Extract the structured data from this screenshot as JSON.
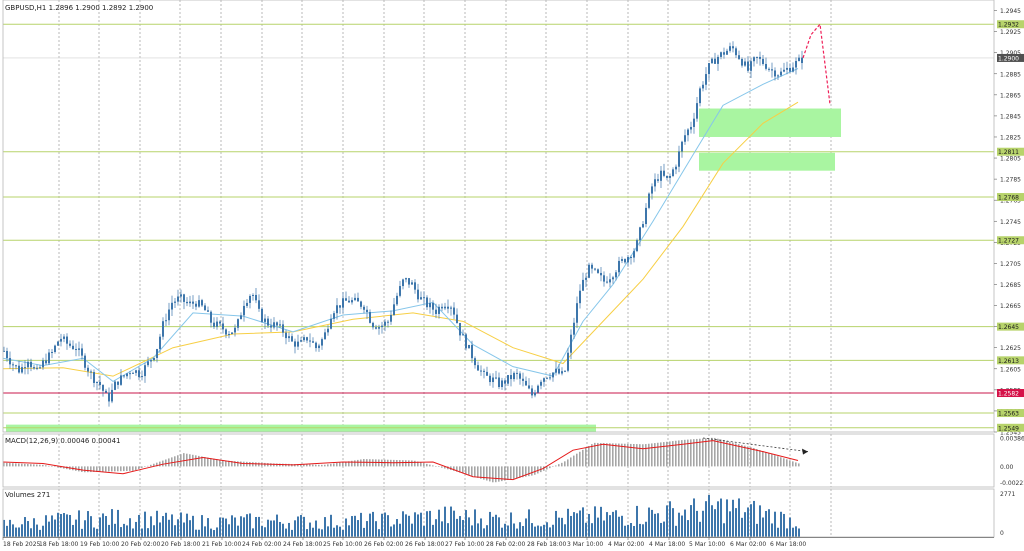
{
  "colors": {
    "background": "#ffffff",
    "grid": "#8a8a8a",
    "frame": "#b8b8b8",
    "candle": "#3d76ab",
    "ma_fast": "#86c6ea",
    "ma_slow": "#f7cf45",
    "level_line": "#b7d36b",
    "level_label_bg": "#b7d36b",
    "zone_fill": "#a9f5a1",
    "red_line": "#c9174b",
    "red_label_bg": "#d51248",
    "forecast": "#ef1f58",
    "macd_line": "#e61a1a",
    "macd_hist": "#a6a6a6",
    "volume": "#3d76ab",
    "current_price_bg": "#505050"
  },
  "main_panel": {
    "header": "GBPUSD,H1  1.2896 1.2900 1.2892 1.2900",
    "price_ticks": [
      "1.2945",
      "1.2925",
      "1.2905",
      "1.2885",
      "1.2865",
      "1.2845",
      "1.2825",
      "1.2805",
      "1.2785",
      "1.2765",
      "1.2745",
      "1.2725",
      "1.2705",
      "1.2685",
      "1.2665",
      "1.2645",
      "1.2625",
      "1.2605",
      "1.2585",
      "1.2565",
      "1.2545"
    ],
    "level_labels": [
      "1.2932",
      "1.2811",
      "1.2768",
      "1.2727",
      "1.2645",
      "1.2613",
      "1.2563",
      "1.2549"
    ],
    "red_level_label": "1.2582",
    "current_price_label": "1.2900"
  },
  "macd_panel": {
    "header": "MACD(12,26,9) 0.00046 0.00041",
    "ticks": [
      "0.00386",
      "0.00",
      "-0.00221"
    ]
  },
  "volume_panel": {
    "header": "Volumes 271",
    "ticks": [
      "2771",
      "0"
    ]
  },
  "time_axis": {
    "labels": [
      "18 Feb 2025",
      "18 Feb 18:00",
      "19 Feb 10:00",
      "20 Feb 02:00",
      "20 Feb 18:00",
      "21 Feb 10:00",
      "24 Feb 02:00",
      "24 Feb 18:00",
      "25 Feb 10:00",
      "26 Feb 02:00",
      "26 Feb 18:00",
      "27 Feb 10:00",
      "28 Feb 02:00",
      "28 Feb 18:00",
      "3 Mar 10:00",
      "4 Mar 02:00",
      "4 Mar 18:00",
      "5 Mar 10:00",
      "6 Mar 02:00",
      "6 Mar 18:00"
    ]
  },
  "chart_data": {
    "type": "candlestick",
    "symbol": "GBPUSD",
    "timeframe": "H1",
    "ylim": [
      1.2545,
      1.2955
    ],
    "close_path": [
      [
        0,
        1.2622
      ],
      [
        8,
        1.261
      ],
      [
        16,
        1.2603
      ],
      [
        24,
        1.2615
      ],
      [
        32,
        1.26
      ],
      [
        40,
        1.2612
      ],
      [
        48,
        1.262
      ],
      [
        56,
        1.2635
      ],
      [
        64,
        1.2628
      ],
      [
        72,
        1.2625
      ],
      [
        80,
        1.2612
      ],
      [
        88,
        1.2598
      ],
      [
        96,
        1.259
      ],
      [
        104,
        1.2575
      ],
      [
        112,
        1.2592
      ],
      [
        120,
        1.2598
      ],
      [
        128,
        1.2605
      ],
      [
        136,
        1.26
      ],
      [
        144,
        1.261
      ],
      [
        152,
        1.2622
      ],
      [
        160,
        1.265
      ],
      [
        168,
        1.2668
      ],
      [
        176,
        1.2672
      ],
      [
        184,
        1.2666
      ],
      [
        192,
        1.2668
      ],
      [
        200,
        1.2662
      ],
      [
        208,
        1.2648
      ],
      [
        216,
        1.2645
      ],
      [
        224,
        1.264
      ],
      [
        232,
        1.2642
      ],
      [
        240,
        1.2668
      ],
      [
        248,
        1.2678
      ],
      [
        256,
        1.2655
      ],
      [
        264,
        1.2648
      ],
      [
        272,
        1.2646
      ],
      [
        280,
        1.264
      ],
      [
        288,
        1.263
      ],
      [
        296,
        1.2628
      ],
      [
        304,
        1.2635
      ],
      [
        312,
        1.2625
      ],
      [
        320,
        1.2635
      ],
      [
        328,
        1.266
      ],
      [
        336,
        1.2666
      ],
      [
        344,
        1.267
      ],
      [
        352,
        1.2668
      ],
      [
        360,
        1.2665
      ],
      [
        368,
        1.2648
      ],
      [
        376,
        1.2645
      ],
      [
        384,
        1.265
      ],
      [
        392,
        1.2672
      ],
      [
        400,
        1.269
      ],
      [
        408,
        1.2685
      ],
      [
        416,
        1.2672
      ],
      [
        424,
        1.2665
      ],
      [
        432,
        1.266
      ],
      [
        440,
        1.2668
      ],
      [
        448,
        1.2665
      ],
      [
        456,
        1.264
      ],
      [
        464,
        1.2625
      ],
      [
        472,
        1.261
      ],
      [
        480,
        1.2598
      ],
      [
        488,
        1.2595
      ],
      [
        496,
        1.259
      ],
      [
        504,
        1.2595
      ],
      [
        512,
        1.26
      ],
      [
        520,
        1.259
      ],
      [
        528,
        1.258
      ],
      [
        536,
        1.2595
      ],
      [
        544,
        1.26
      ],
      [
        552,
        1.2602
      ],
      [
        560,
        1.2598
      ],
      [
        568,
        1.264
      ],
      [
        576,
        1.268
      ],
      [
        584,
        1.27
      ],
      [
        592,
        1.2695
      ],
      [
        600,
        1.2688
      ],
      [
        608,
        1.2695
      ],
      [
        616,
        1.2705
      ],
      [
        624,
        1.2712
      ],
      [
        632,
        1.272
      ],
      [
        640,
        1.275
      ],
      [
        648,
        1.2778
      ],
      [
        656,
        1.279
      ],
      [
        664,
        1.2783
      ],
      [
        672,
        1.28
      ],
      [
        680,
        1.2825
      ],
      [
        688,
        1.2838
      ],
      [
        696,
        1.287
      ],
      [
        704,
        1.289
      ],
      [
        712,
        1.29
      ],
      [
        720,
        1.2905
      ],
      [
        728,
        1.291
      ],
      [
        736,
        1.29
      ],
      [
        744,
        1.2888
      ],
      [
        752,
        1.29
      ],
      [
        760,
        1.2895
      ],
      [
        768,
        1.2888
      ],
      [
        776,
        1.2885
      ],
      [
        784,
        1.289
      ],
      [
        792,
        1.2895
      ],
      [
        800,
        1.29
      ]
    ],
    "ma_fast_path": [
      [
        0,
        1.2615
      ],
      [
        40,
        1.2608
      ],
      [
        80,
        1.2615
      ],
      [
        110,
        1.2593
      ],
      [
        150,
        1.2615
      ],
      [
        190,
        1.2658
      ],
      [
        240,
        1.2655
      ],
      [
        290,
        1.264
      ],
      [
        340,
        1.2656
      ],
      [
        390,
        1.266
      ],
      [
        430,
        1.2668
      ],
      [
        470,
        1.2628
      ],
      [
        510,
        1.2607
      ],
      [
        550,
        1.2598
      ],
      [
        580,
        1.265
      ],
      [
        610,
        1.2685
      ],
      [
        650,
        1.2745
      ],
      [
        690,
        1.2808
      ],
      [
        720,
        1.2855
      ],
      [
        760,
        1.2875
      ],
      [
        795,
        1.289
      ]
    ],
    "ma_slow_path": [
      [
        0,
        1.2605
      ],
      [
        60,
        1.2606
      ],
      [
        110,
        1.2598
      ],
      [
        170,
        1.2625
      ],
      [
        230,
        1.2638
      ],
      [
        290,
        1.264
      ],
      [
        350,
        1.2652
      ],
      [
        410,
        1.2658
      ],
      [
        460,
        1.265
      ],
      [
        510,
        1.2625
      ],
      [
        560,
        1.261
      ],
      [
        600,
        1.265
      ],
      [
        640,
        1.269
      ],
      [
        680,
        1.274
      ],
      [
        720,
        1.28
      ],
      [
        760,
        1.2838
      ],
      [
        795,
        1.2858
      ]
    ],
    "horizontal_levels": [
      1.2932,
      1.2811,
      1.2768,
      1.2727,
      1.2645,
      1.2613,
      1.2563,
      1.2549
    ],
    "red_level": 1.2582,
    "zones": [
      {
        "x0": 696,
        "x1": 838,
        "top": 1.2852,
        "bottom": 1.2825
      },
      {
        "x0": 696,
        "x1": 832,
        "top": 1.281,
        "bottom": 1.2793
      },
      {
        "x0": 3,
        "x1": 593,
        "top": 1.2552,
        "bottom": 1.2545
      }
    ],
    "forecast_path": [
      [
        800,
        1.29
      ],
      [
        808,
        1.2922
      ],
      [
        817,
        1.2932
      ],
      [
        827,
        1.2856
      ]
    ],
    "current_price": 1.29,
    "macd": {
      "ylim": [
        -0.0028,
        0.0044
      ],
      "signal_path": [
        [
          0,
          0.0006
        ],
        [
          40,
          0.0004
        ],
        [
          80,
          -0.0005
        ],
        [
          120,
          -0.001
        ],
        [
          160,
          0.0003
        ],
        [
          200,
          0.0012
        ],
        [
          240,
          0.0004
        ],
        [
          290,
          0.0002
        ],
        [
          340,
          0.0006
        ],
        [
          390,
          0.0005
        ],
        [
          430,
          0.0006
        ],
        [
          470,
          -0.0014
        ],
        [
          510,
          -0.0018
        ],
        [
          540,
          -0.0003
        ],
        [
          570,
          0.0022
        ],
        [
          600,
          0.003
        ],
        [
          640,
          0.0024
        ],
        [
          680,
          0.003
        ],
        [
          710,
          0.0035
        ],
        [
          760,
          0.002
        ],
        [
          795,
          0.0008
        ]
      ],
      "hist_path": [
        [
          0,
          0.0005
        ],
        [
          40,
          0.0002
        ],
        [
          80,
          -0.0008
        ],
        [
          130,
          -0.0006
        ],
        [
          180,
          0.0018
        ],
        [
          220,
          0.0008
        ],
        [
          270,
          0.0004
        ],
        [
          320,
          0.0002
        ],
        [
          360,
          0.001
        ],
        [
          410,
          0.0008
        ],
        [
          450,
          -0.0006
        ],
        [
          490,
          -0.0022
        ],
        [
          530,
          -0.0012
        ],
        [
          560,
          0.0006
        ],
        [
          590,
          0.0032
        ],
        [
          640,
          0.003
        ],
        [
          680,
          0.0036
        ],
        [
          710,
          0.0039
        ],
        [
          750,
          0.0025
        ],
        [
          795,
          0.0004
        ]
      ],
      "trend_arrow": [
        [
          700,
          0.00386
        ],
        [
          805,
          0.002
        ]
      ]
    },
    "volume": {
      "max": 2771,
      "profile": [
        [
          0,
          0.3
        ],
        [
          60,
          0.4
        ],
        [
          120,
          0.45
        ],
        [
          200,
          0.35
        ],
        [
          260,
          0.38
        ],
        [
          320,
          0.35
        ],
        [
          380,
          0.4
        ],
        [
          440,
          0.5
        ],
        [
          500,
          0.42
        ],
        [
          560,
          0.45
        ],
        [
          620,
          0.5
        ],
        [
          680,
          0.6
        ],
        [
          720,
          0.7
        ],
        [
          760,
          0.55
        ],
        [
          795,
          0.35
        ]
      ]
    }
  }
}
